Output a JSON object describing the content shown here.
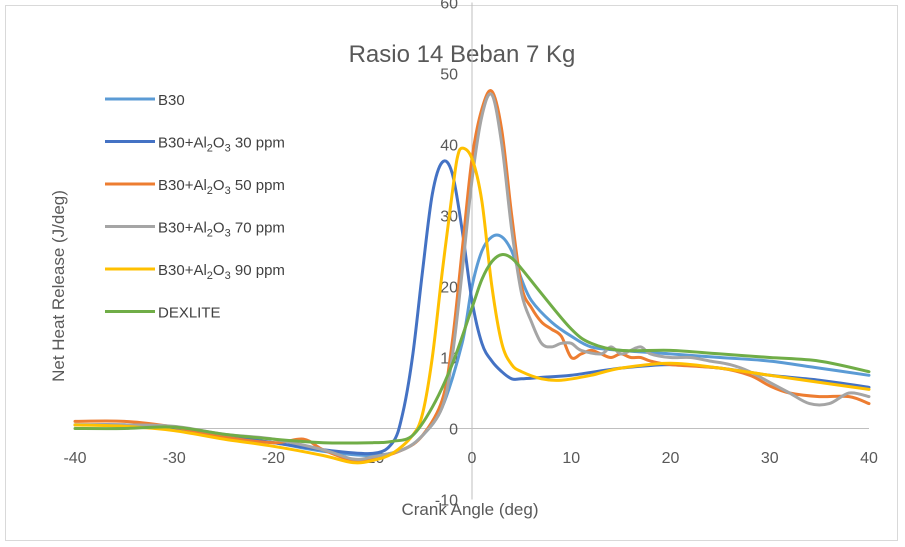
{
  "chart_data": {
    "type": "line",
    "title": "Rasio 14 Beban 7 Kg",
    "xlabel": "Crank Angle (deg)",
    "ylabel": "Net Heat Release (J/deg)",
    "xlim": [
      -40,
      40
    ],
    "ylim": [
      -10,
      60
    ],
    "xticks": [
      "-40",
      "-30",
      "-20",
      "-10",
      "0",
      "10",
      "20",
      "30",
      "40"
    ],
    "yticks": [
      "-10",
      "0",
      "10",
      "20",
      "30",
      "40",
      "50",
      "60"
    ],
    "grid": false,
    "legend_position": "left",
    "series": [
      {
        "name": "B30",
        "legend": {
          "pre": "B30",
          "sub1": "",
          "mid": "",
          "sub2": "",
          "post": ""
        },
        "color": "#5B9BD5",
        "points": [
          [
            -40,
            0.5
          ],
          [
            -35,
            0.5
          ],
          [
            -30,
            0
          ],
          [
            -25,
            -1.2
          ],
          [
            -20,
            -2
          ],
          [
            -15,
            -3.2
          ],
          [
            -10,
            -3.8
          ],
          [
            -7,
            -3
          ],
          [
            -5,
            -1
          ],
          [
            -3,
            3
          ],
          [
            -1,
            12
          ],
          [
            0,
            20
          ],
          [
            1,
            25
          ],
          [
            2,
            27
          ],
          [
            3,
            27
          ],
          [
            4,
            25
          ],
          [
            5,
            21
          ],
          [
            6,
            18
          ],
          [
            8,
            15
          ],
          [
            10,
            13
          ],
          [
            12,
            11.5
          ],
          [
            15,
            11
          ],
          [
            20,
            10.5
          ],
          [
            25,
            10
          ],
          [
            30,
            9.5
          ],
          [
            35,
            8.5
          ],
          [
            40,
            7.5
          ]
        ]
      },
      {
        "name": "B30+Al2O3 30 ppm",
        "legend": {
          "pre": "B30+Al",
          "sub1": "2",
          "mid": "O",
          "sub2": "3",
          "post": " 30 ppm"
        },
        "color": "#4472C4",
        "points": [
          [
            -40,
            0.5
          ],
          [
            -35,
            0.5
          ],
          [
            -30,
            0
          ],
          [
            -25,
            -1
          ],
          [
            -20,
            -2
          ],
          [
            -15,
            -3
          ],
          [
            -10,
            -3.5
          ],
          [
            -8,
            -2
          ],
          [
            -7,
            2
          ],
          [
            -6,
            10
          ],
          [
            -5,
            22
          ],
          [
            -4,
            33
          ],
          [
            -3,
            37.5
          ],
          [
            -2,
            36
          ],
          [
            -1,
            28
          ],
          [
            0,
            18
          ],
          [
            1,
            12
          ],
          [
            2,
            9.5
          ],
          [
            3,
            8
          ],
          [
            4,
            7
          ],
          [
            5,
            7
          ],
          [
            7,
            7.2
          ],
          [
            10,
            7.5
          ],
          [
            15,
            8.5
          ],
          [
            20,
            9
          ],
          [
            25,
            8.5
          ],
          [
            30,
            7.5
          ],
          [
            35,
            6.8
          ],
          [
            40,
            5.8
          ]
        ]
      },
      {
        "name": "B30+Al2O3 50 ppm",
        "legend": {
          "pre": "B30+Al",
          "sub1": "2",
          "mid": "O",
          "sub2": "3",
          "post": " 50 ppm"
        },
        "color": "#ED7D31",
        "points": [
          [
            -40,
            1
          ],
          [
            -35,
            1
          ],
          [
            -30,
            0.2
          ],
          [
            -25,
            -1.2
          ],
          [
            -20,
            -2
          ],
          [
            -17,
            -1.5
          ],
          [
            -15,
            -3
          ],
          [
            -12,
            -4.5
          ],
          [
            -10,
            -4.3
          ],
          [
            -7,
            -3
          ],
          [
            -5,
            -1
          ],
          [
            -3,
            4
          ],
          [
            -2,
            12
          ],
          [
            -1,
            25
          ],
          [
            0,
            38
          ],
          [
            1,
            45
          ],
          [
            2,
            47.5
          ],
          [
            3,
            42
          ],
          [
            4,
            30
          ],
          [
            5,
            20
          ],
          [
            6,
            17
          ],
          [
            7,
            15
          ],
          [
            8,
            14
          ],
          [
            9,
            13
          ],
          [
            10,
            10
          ],
          [
            11,
            10.5
          ],
          [
            12,
            11
          ],
          [
            13,
            10.5
          ],
          [
            14,
            10
          ],
          [
            15,
            10.5
          ],
          [
            16,
            10
          ],
          [
            17,
            10
          ],
          [
            18,
            9.5
          ],
          [
            20,
            9
          ],
          [
            25,
            8.5
          ],
          [
            28,
            7.5
          ],
          [
            30,
            6
          ],
          [
            32,
            5
          ],
          [
            35,
            4.5
          ],
          [
            38,
            4.5
          ],
          [
            40,
            3.5
          ]
        ]
      },
      {
        "name": "B30+Al2O3 70 ppm",
        "legend": {
          "pre": "B30+Al",
          "sub1": "2",
          "mid": "O",
          "sub2": "3",
          "post": " 70 ppm"
        },
        "color": "#A5A5A5",
        "points": [
          [
            -40,
            0.5
          ],
          [
            -35,
            0.5
          ],
          [
            -30,
            0.3
          ],
          [
            -25,
            -0.8
          ],
          [
            -20,
            -1.5
          ],
          [
            -15,
            -3
          ],
          [
            -12,
            -4.3
          ],
          [
            -10,
            -4
          ],
          [
            -7,
            -3
          ],
          [
            -5,
            -1
          ],
          [
            -3,
            3
          ],
          [
            -2,
            10
          ],
          [
            -1,
            22
          ],
          [
            0,
            35
          ],
          [
            1,
            44
          ],
          [
            2,
            47
          ],
          [
            3,
            40
          ],
          [
            4,
            28
          ],
          [
            5,
            19
          ],
          [
            6,
            15
          ],
          [
            7,
            12
          ],
          [
            8,
            11.5
          ],
          [
            9,
            12
          ],
          [
            10,
            12
          ],
          [
            11,
            11
          ],
          [
            13,
            10.5
          ],
          [
            14,
            11.5
          ],
          [
            15,
            10.5
          ],
          [
            16,
            11
          ],
          [
            17,
            11.5
          ],
          [
            18,
            10.5
          ],
          [
            20,
            10
          ],
          [
            22,
            10
          ],
          [
            24,
            9.5
          ],
          [
            26,
            9
          ],
          [
            28,
            8
          ],
          [
            30,
            6.5
          ],
          [
            32,
            5
          ],
          [
            34,
            3.5
          ],
          [
            36,
            3.5
          ],
          [
            38,
            5
          ],
          [
            40,
            4.5
          ]
        ]
      },
      {
        "name": "B30+Al2O3 90 ppm",
        "legend": {
          "pre": "B30+Al",
          "sub1": "2",
          "mid": "O",
          "sub2": "3",
          "post": " 90 ppm"
        },
        "color": "#FFC000",
        "points": [
          [
            -40,
            0.5
          ],
          [
            -35,
            0.3
          ],
          [
            -30,
            -0.3
          ],
          [
            -25,
            -1.5
          ],
          [
            -20,
            -2.5
          ],
          [
            -15,
            -3.8
          ],
          [
            -12,
            -4.8
          ],
          [
            -10,
            -4.5
          ],
          [
            -8,
            -3.5
          ],
          [
            -6,
            -1
          ],
          [
            -5,
            2
          ],
          [
            -4,
            10
          ],
          [
            -3,
            22
          ],
          [
            -2,
            33
          ],
          [
            -1.5,
            38
          ],
          [
            -1,
            39.5
          ],
          [
            0,
            38
          ],
          [
            1,
            32
          ],
          [
            2,
            20
          ],
          [
            3,
            12
          ],
          [
            4,
            9
          ],
          [
            5,
            8
          ],
          [
            7,
            7
          ],
          [
            9,
            6.8
          ],
          [
            12,
            7.5
          ],
          [
            15,
            8.5
          ],
          [
            20,
            9.2
          ],
          [
            25,
            8.5
          ],
          [
            30,
            7.5
          ],
          [
            35,
            6.5
          ],
          [
            40,
            5.5
          ]
        ]
      },
      {
        "name": "DEXLITE",
        "legend": {
          "pre": "DEXLITE",
          "sub1": "",
          "mid": "",
          "sub2": "",
          "post": ""
        },
        "color": "#70AD47",
        "points": [
          [
            -40,
            0
          ],
          [
            -35,
            0
          ],
          [
            -30,
            0.2
          ],
          [
            -25,
            -0.8
          ],
          [
            -20,
            -1.5
          ],
          [
            -15,
            -2
          ],
          [
            -10,
            -2
          ],
          [
            -8,
            -1.8
          ],
          [
            -6,
            -1
          ],
          [
            -4,
            3
          ],
          [
            -2,
            9
          ],
          [
            0,
            17
          ],
          [
            1,
            21
          ],
          [
            2,
            23.5
          ],
          [
            3,
            24.5
          ],
          [
            4,
            24
          ],
          [
            5,
            22.5
          ],
          [
            7,
            19
          ],
          [
            10,
            14
          ],
          [
            12,
            12
          ],
          [
            15,
            11
          ],
          [
            20,
            11
          ],
          [
            25,
            10.5
          ],
          [
            30,
            10
          ],
          [
            35,
            9.5
          ],
          [
            40,
            8
          ]
        ]
      }
    ]
  }
}
